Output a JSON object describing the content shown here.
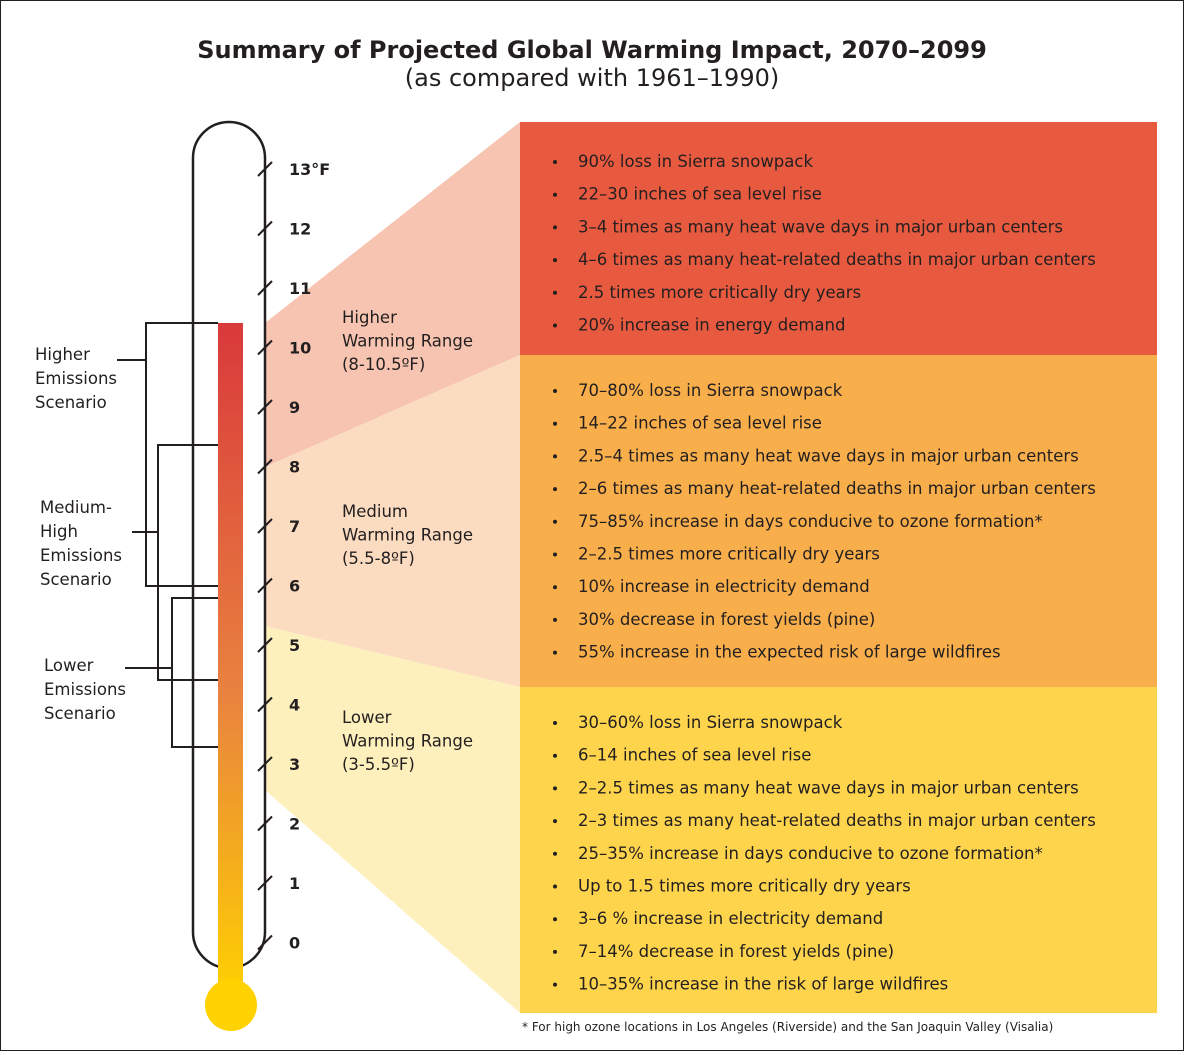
{
  "header": {
    "title": "Summary of Projected Global Warming Impact, 2070–2099",
    "subtitle": "(as compared with 1961–1990)"
  },
  "scale": {
    "ticks": [
      "13°F",
      "12",
      "11",
      "10",
      "9",
      "8",
      "7",
      "6",
      "5",
      "4",
      "3",
      "2",
      "1",
      "0"
    ]
  },
  "scenarios": [
    {
      "lines": [
        "Higher",
        "Emissions",
        "Scenario"
      ]
    },
    {
      "lines": [
        "Medium-",
        "High",
        "Emissions",
        "Scenario"
      ]
    },
    {
      "lines": [
        "Lower",
        "Emissions",
        "Scenario"
      ]
    }
  ],
  "ranges": [
    {
      "lines": [
        "Higher",
        "Warming Range",
        "(8-10.5ºF)"
      ],
      "items": [
        "90% loss in Sierra snowpack",
        "22–30 inches of sea level rise",
        "3–4 times as many heat wave days in major urban centers",
        "4–6 times as many heat-related deaths in major urban centers",
        "2.5 times more critically dry years",
        "20% increase in energy demand"
      ]
    },
    {
      "lines": [
        "Medium",
        "Warming Range",
        "(5.5-8ºF)"
      ],
      "items": [
        "70–80% loss in Sierra snowpack",
        "14–22 inches of sea level rise",
        "2.5–4 times as many heat wave days in major urban centers",
        "2–6 times as many heat-related deaths in major urban centers",
        "75–85% increase in days conducive to ozone formation*",
        "2–2.5 times more critically dry years",
        "10% increase in electricity demand",
        "30% decrease in forest yields (pine)",
        "55% increase in the expected risk of large wildfires"
      ]
    },
    {
      "lines": [
        "Lower",
        "Warming Range",
        "(3-5.5ºF)"
      ],
      "items": [
        "30–60% loss in Sierra snowpack",
        "6–14 inches of sea level rise",
        "2–2.5 times as many heat wave days in major urban centers",
        "2–3 times as many heat-related deaths in major urban centers",
        "25–35% increase in days conducive to ozone formation*",
        "Up to 1.5 times more critically dry years",
        "3–6 % increase in electricity demand",
        "7–14% decrease in forest yields (pine)",
        "10–35% increase in the risk of large wildfires"
      ]
    }
  ],
  "footnote": "* For high ozone locations in Los Angeles (Riverside) and the San Joaquin Valley (Visalia)"
}
